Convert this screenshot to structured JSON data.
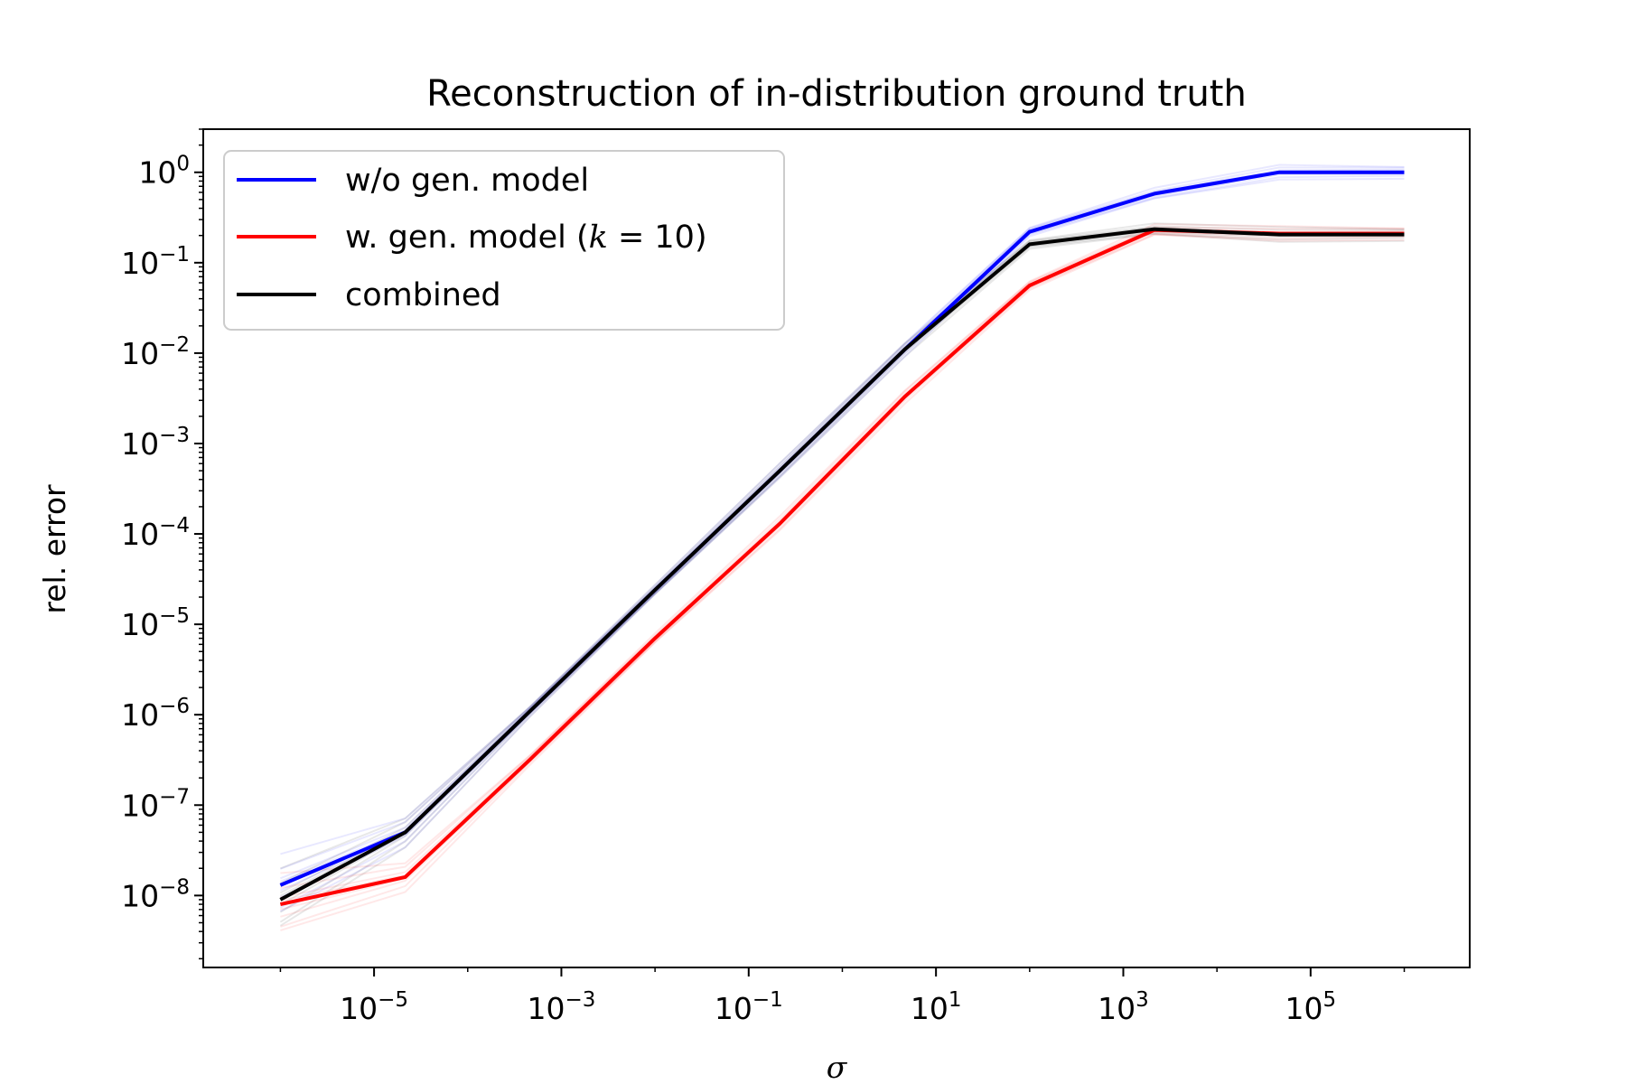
{
  "chart_data": {
    "type": "line",
    "title": "Reconstruction of in-distribution ground truth",
    "xlabel": "σ",
    "ylabel": "rel. error",
    "xscale": "log",
    "yscale": "log",
    "xlim": [
      1.5e-07,
      5000000.0
    ],
    "ylim": [
      1.6e-09,
      3
    ],
    "x_ticks": [
      {
        "value": 1e-05,
        "base": "10",
        "exp": "−5"
      },
      {
        "value": 0.001,
        "base": "10",
        "exp": "−3"
      },
      {
        "value": 0.1,
        "base": "10",
        "exp": "−1"
      },
      {
        "value": 10.0,
        "base": "10",
        "exp": "1"
      },
      {
        "value": 1000.0,
        "base": "10",
        "exp": "3"
      },
      {
        "value": 100000.0,
        "base": "10",
        "exp": "5"
      }
    ],
    "y_ticks": [
      {
        "value": 1,
        "base": "10",
        "exp": "0"
      },
      {
        "value": 0.1,
        "base": "10",
        "exp": "−1"
      },
      {
        "value": 0.01,
        "base": "10",
        "exp": "−2"
      },
      {
        "value": 0.001,
        "base": "10",
        "exp": "−3"
      },
      {
        "value": 0.0001,
        "base": "10",
        "exp": "−4"
      },
      {
        "value": 1e-05,
        "base": "10",
        "exp": "−5"
      },
      {
        "value": 1e-06,
        "base": "10",
        "exp": "−6"
      },
      {
        "value": 1e-07,
        "base": "10",
        "exp": "−7"
      },
      {
        "value": 1e-08,
        "base": "10",
        "exp": "−8"
      }
    ],
    "x": [
      1e-06,
      2.15e-05,
      0.000464,
      0.01,
      0.215,
      4.64,
      100.0,
      2150.0,
      46400.0,
      1000000.0
    ],
    "series": [
      {
        "name": "w/o gen. model",
        "color": "#0000ff",
        "values": [
          1.3e-08,
          5e-08,
          1.1e-06,
          2.4e-05,
          0.0005,
          0.011,
          0.22,
          0.58,
          1.0,
          1.0
        ]
      },
      {
        "name": "w. gen. model (k = 10)",
        "name_prefix": "w. gen. model (",
        "name_var": "k",
        "name_suffix": " = 10)",
        "color": "#ff0000",
        "values": [
          8e-09,
          1.6e-08,
          3.2e-07,
          7e-06,
          0.00013,
          0.0033,
          0.056,
          0.23,
          0.21,
          0.21
        ]
      },
      {
        "name": "combined",
        "color": "#000000",
        "values": [
          9e-09,
          5e-08,
          1.1e-06,
          2.4e-05,
          0.0005,
          0.011,
          0.16,
          0.235,
          0.205,
          0.205
        ]
      }
    ],
    "legend_position": "top-left",
    "grid": false
  }
}
